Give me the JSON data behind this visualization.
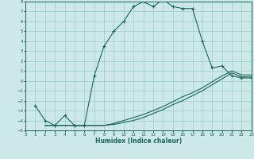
{
  "xlabel": "Humidex (Indice chaleur)",
  "bg_color": "#cce8e8",
  "grid_color": "#99cccc",
  "line_color": "#1a6655",
  "marker": "+",
  "xlim": [
    0,
    23
  ],
  "ylim": [
    -5,
    8
  ],
  "xticks": [
    0,
    1,
    2,
    3,
    4,
    5,
    6,
    7,
    8,
    9,
    10,
    11,
    12,
    13,
    14,
    15,
    16,
    17,
    18,
    19,
    20,
    21,
    22,
    23
  ],
  "yticks": [
    -5,
    -4,
    -3,
    -2,
    -1,
    0,
    1,
    2,
    3,
    4,
    5,
    6,
    7,
    8
  ],
  "main_x": [
    1,
    2,
    3,
    4,
    5,
    6,
    7,
    8,
    9,
    10,
    11,
    12,
    13,
    14,
    15,
    16,
    17,
    18,
    19,
    20,
    21,
    22,
    23
  ],
  "main_y": [
    -2.5,
    -4.0,
    -4.5,
    -3.5,
    -4.5,
    -4.5,
    0.5,
    3.5,
    5.0,
    6.0,
    7.5,
    8.0,
    7.5,
    8.2,
    7.5,
    7.3,
    7.3,
    4.0,
    1.3,
    1.5,
    0.5,
    0.3,
    0.3
  ],
  "low1_x": [
    2,
    3,
    4,
    5,
    6,
    7,
    8,
    9,
    10,
    11,
    12,
    13,
    14,
    15,
    16,
    17,
    18,
    19,
    20,
    21,
    22,
    23
  ],
  "low1_y": [
    -4.5,
    -4.5,
    -4.5,
    -4.5,
    -4.5,
    -4.5,
    -4.5,
    -4.4,
    -4.2,
    -4.0,
    -3.7,
    -3.3,
    -2.9,
    -2.4,
    -2.0,
    -1.5,
    -1.0,
    -0.4,
    0.2,
    0.8,
    0.4,
    0.4
  ],
  "low2_x": [
    2,
    3,
    4,
    5,
    6,
    7,
    8,
    9,
    10,
    11,
    12,
    13,
    14,
    15,
    16,
    17,
    18,
    19,
    20,
    21,
    22,
    23
  ],
  "low2_y": [
    -4.5,
    -4.5,
    -4.5,
    -4.5,
    -4.5,
    -4.5,
    -4.5,
    -4.3,
    -4.0,
    -3.7,
    -3.4,
    -3.0,
    -2.6,
    -2.1,
    -1.6,
    -1.2,
    -0.7,
    -0.1,
    0.5,
    1.0,
    0.6,
    0.6
  ]
}
